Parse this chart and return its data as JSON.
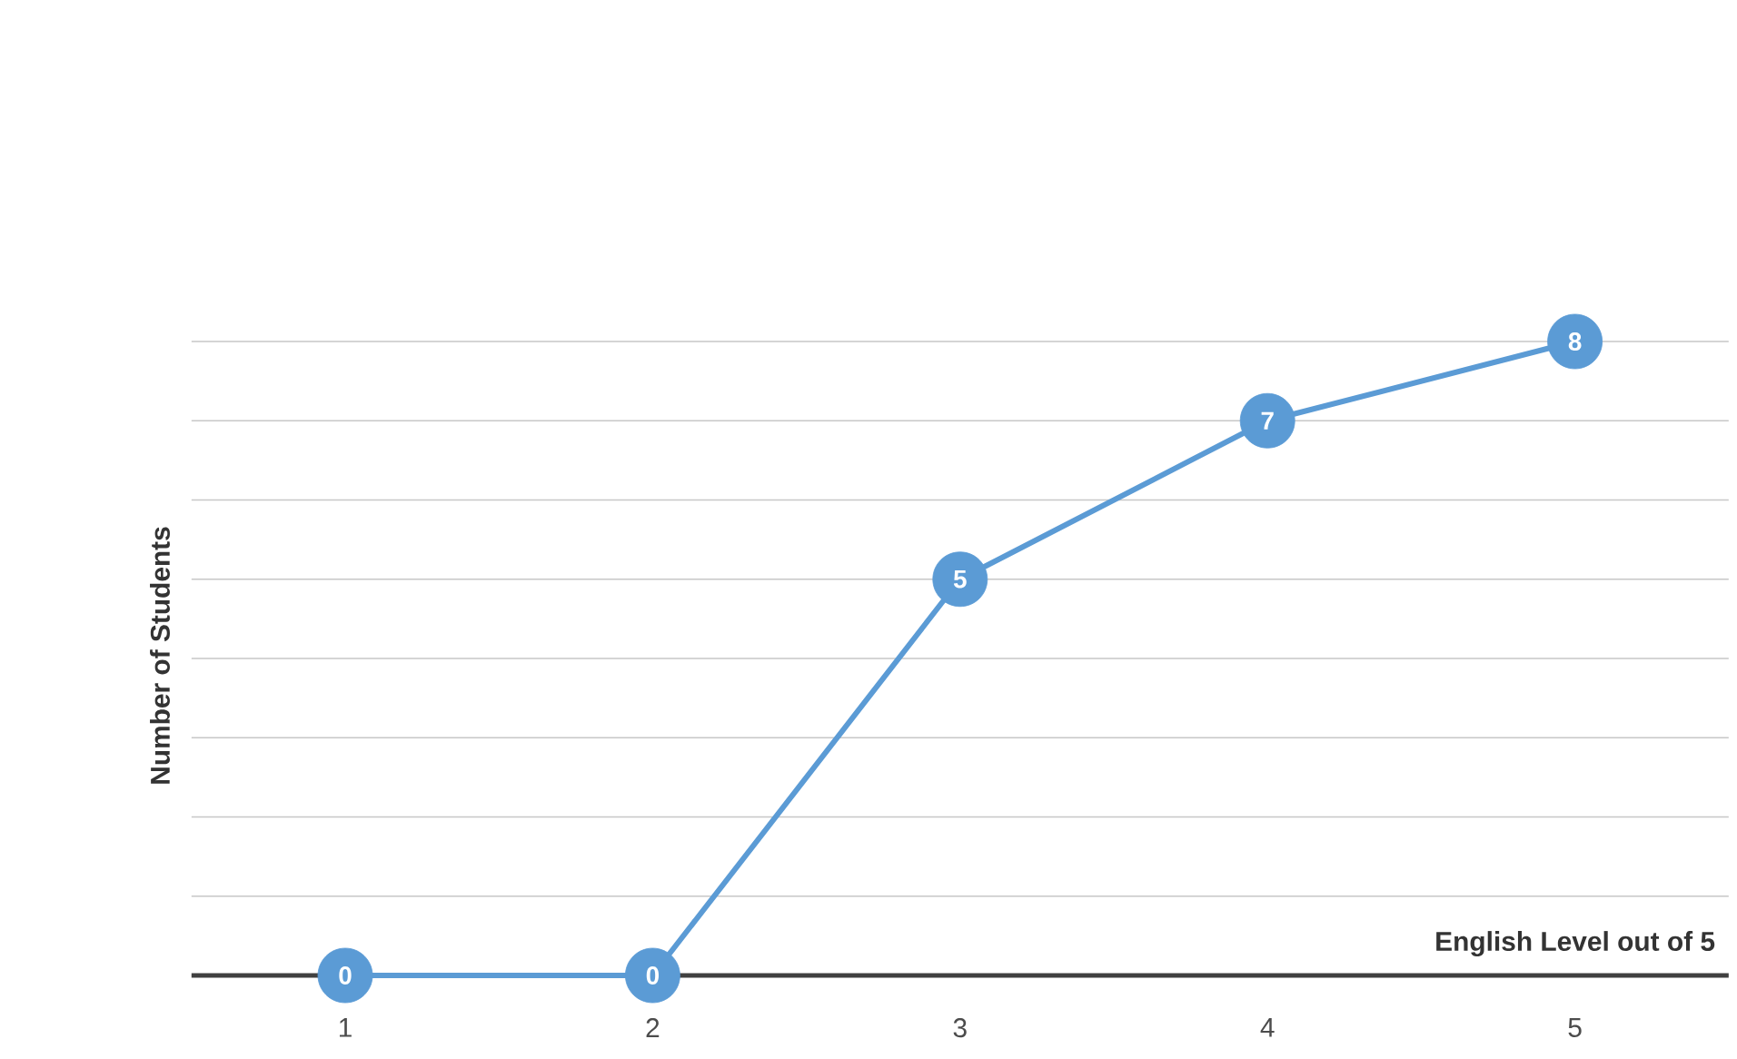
{
  "chart_data": {
    "type": "line",
    "xlabel": "English Level out of 5",
    "ylabel": "Number of Students",
    "categories": [
      "1",
      "2",
      "3",
      "4",
      "5"
    ],
    "series": [
      {
        "color": "#5b9bd5",
        "values": [
          0,
          0,
          5,
          7,
          8
        ]
      }
    ],
    "tick_labels": "x",
    "grid": "y",
    "data_labels": true,
    "marker": "circle",
    "line_style": "solid"
  }
}
